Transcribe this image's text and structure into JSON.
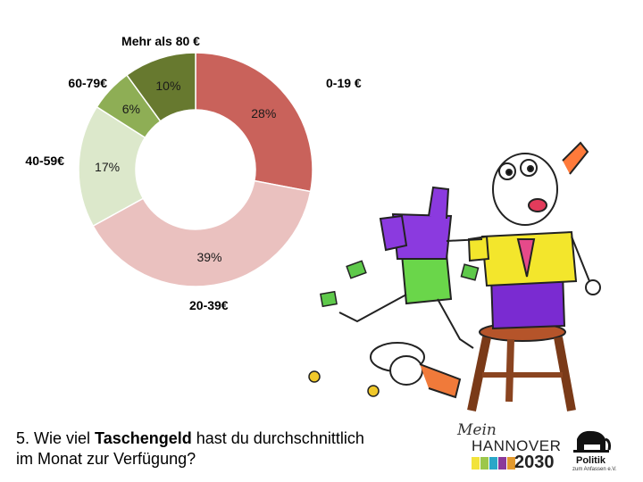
{
  "chart_data": {
    "type": "pie",
    "title": "",
    "categories": [
      "0-19 €",
      "20-39€",
      "40-59€",
      "60-79€",
      "Mehr als 80 €"
    ],
    "values": [
      28,
      39,
      17,
      6,
      10
    ],
    "value_labels": [
      "28%",
      "39%",
      "17%",
      "6%",
      "10%"
    ],
    "unit": "%",
    "colors": [
      "#c9625b",
      "#eac1bf",
      "#dce8cb",
      "#8eae55",
      "#67792f"
    ],
    "style": "donut"
  },
  "question": {
    "number_prefix": "5. Wie viel ",
    "bold": "Taschengeld",
    "rest_line1": " hast du durchschnittlich",
    "line2": "im Monat zur Verfügung?"
  },
  "logos": {
    "mein": "Mein",
    "hannover": "HANNOVER",
    "year": "2030",
    "bar_colors": [
      "#f2e33a",
      "#9cc74b",
      "#2aa7c8",
      "#8b3a9a",
      "#e39a2e"
    ],
    "politik_title": "Politik",
    "politik_subtitle": "zum Anfassen e.V."
  },
  "illustration": {
    "description_icons": [
      "man-on-stool-icon",
      "falling-man-icon",
      "banknote-icon",
      "coin-icon"
    ]
  }
}
